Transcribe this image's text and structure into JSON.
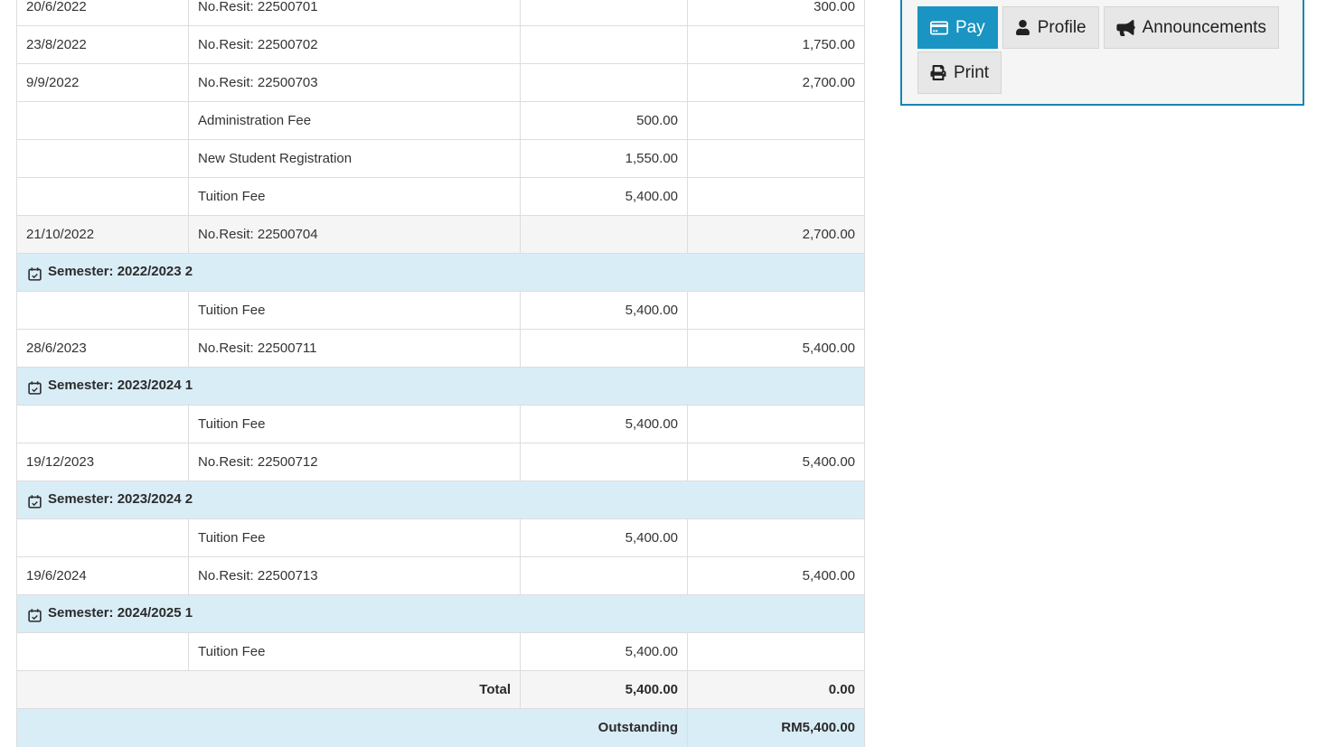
{
  "colors": {
    "accent_blue": "#1a94c2",
    "panel_border": "#1786b2",
    "semester_row_bg": "#d9edf7",
    "highlight_row_bg": "#f5f5f5",
    "outstanding_row_bg": "#d9edf7"
  },
  "statement": {
    "rows": [
      {
        "type": "entry",
        "date": "20/6/2022",
        "description": "No.Resit: 22500701",
        "debit": "",
        "credit": "300.00"
      },
      {
        "type": "entry",
        "date": "23/8/2022",
        "description": "No.Resit: 22500702",
        "debit": "",
        "credit": "1,750.00"
      },
      {
        "type": "entry",
        "date": "9/9/2022",
        "description": "No.Resit: 22500703",
        "debit": "",
        "credit": "2,700.00"
      },
      {
        "type": "entry",
        "date": "",
        "description": "Administration Fee",
        "debit": "500.00",
        "credit": ""
      },
      {
        "type": "entry",
        "date": "",
        "description": "New Student Registration",
        "debit": "1,550.00",
        "credit": ""
      },
      {
        "type": "entry",
        "date": "",
        "description": "Tuition Fee",
        "debit": "5,400.00",
        "credit": ""
      },
      {
        "type": "entry",
        "date": "21/10/2022",
        "description": "No.Resit: 22500704",
        "debit": "",
        "credit": "2,700.00",
        "highlight": true
      },
      {
        "type": "semester",
        "label": "Semester: 2022/2023 2",
        "icon": "calendar-check-icon"
      },
      {
        "type": "entry",
        "date": "",
        "description": "Tuition Fee",
        "debit": "5,400.00",
        "credit": ""
      },
      {
        "type": "entry",
        "date": "28/6/2023",
        "description": "No.Resit: 22500711",
        "debit": "",
        "credit": "5,400.00"
      },
      {
        "type": "semester",
        "label": "Semester: 2023/2024 1",
        "icon": "calendar-check-icon"
      },
      {
        "type": "entry",
        "date": "",
        "description": "Tuition Fee",
        "debit": "5,400.00",
        "credit": ""
      },
      {
        "type": "entry",
        "date": "19/12/2023",
        "description": "No.Resit: 22500712",
        "debit": "",
        "credit": "5,400.00"
      },
      {
        "type": "semester",
        "label": "Semester: 2023/2024 2",
        "icon": "calendar-check-icon"
      },
      {
        "type": "entry",
        "date": "",
        "description": "Tuition Fee",
        "debit": "5,400.00",
        "credit": ""
      },
      {
        "type": "entry",
        "date": "19/6/2024",
        "description": "No.Resit: 22500713",
        "debit": "",
        "credit": "5,400.00"
      },
      {
        "type": "semester",
        "label": "Semester: 2024/2025 1",
        "icon": "calendar-check-icon"
      },
      {
        "type": "entry",
        "date": "",
        "description": "Tuition Fee",
        "debit": "5,400.00",
        "credit": ""
      },
      {
        "type": "total",
        "label": "Total",
        "debit": "5,400.00",
        "credit": "0.00"
      },
      {
        "type": "outstanding",
        "label": "Outstanding",
        "amount": "RM5,400.00"
      }
    ]
  },
  "actions": {
    "pay": {
      "label": "Pay",
      "icon": "credit-card-icon",
      "active": true
    },
    "profile": {
      "label": "Profile",
      "icon": "user-icon"
    },
    "announcements": {
      "label": "Announcements",
      "icon": "bullhorn-icon"
    },
    "print": {
      "label": "Print",
      "icon": "printer-icon"
    }
  }
}
